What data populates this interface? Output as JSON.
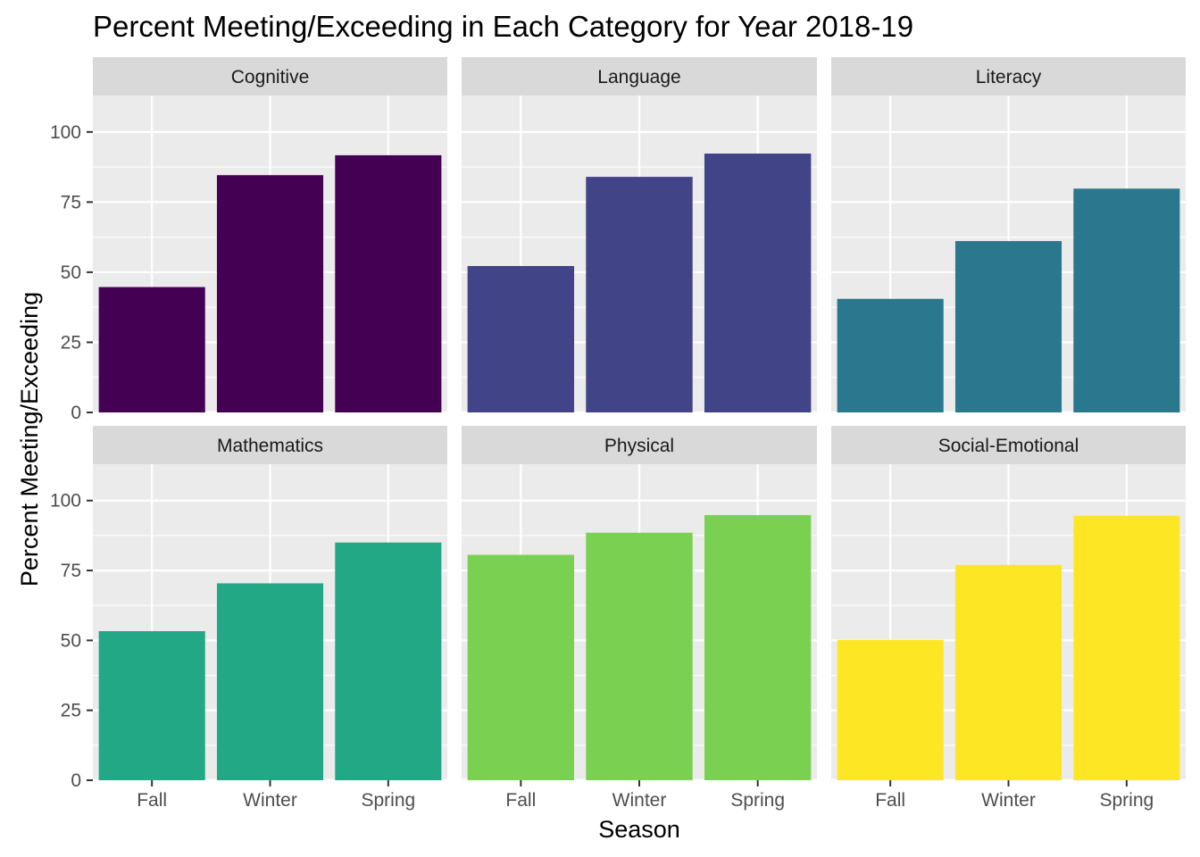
{
  "chart_data": {
    "type": "bar",
    "title": "Percent Meeting/Exceeding in Each Category for Year 2018-19",
    "xlabel": "Season",
    "ylabel": "Percent Meeting/Exceeding",
    "categories": [
      "Fall",
      "Winter",
      "Spring"
    ],
    "ylim": [
      0,
      113
    ],
    "yticks": [
      0,
      25,
      50,
      75,
      100
    ],
    "grid": true,
    "facet_layout": {
      "rows": 2,
      "cols": 3
    },
    "panels": [
      {
        "name": "Cognitive",
        "color": "#440154",
        "values": [
          44.7,
          84.6,
          91.7
        ]
      },
      {
        "name": "Language",
        "color": "#414487",
        "values": [
          52.2,
          84.0,
          92.3
        ]
      },
      {
        "name": "Literacy",
        "color": "#2A788E",
        "values": [
          40.5,
          61.1,
          79.8
        ]
      },
      {
        "name": "Mathematics",
        "color": "#22A884",
        "values": [
          53.3,
          70.4,
          85.0
        ]
      },
      {
        "name": "Physical",
        "color": "#7AD151",
        "values": [
          80.6,
          88.5,
          94.8
        ]
      },
      {
        "name": "Social-Emotional",
        "color": "#FDE725",
        "values": [
          50.2,
          77.0,
          94.6
        ]
      }
    ]
  }
}
